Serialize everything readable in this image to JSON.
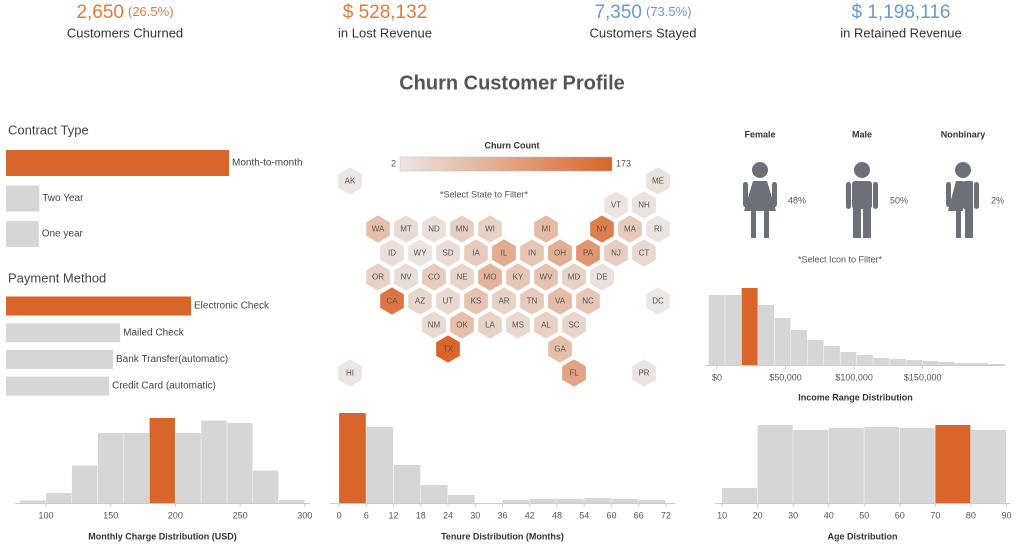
{
  "kpis": [
    {
      "value": "2,650",
      "share": "(26.5%)",
      "label": "Customers Churned",
      "color": "#e07b39"
    },
    {
      "value": "$ 528,132",
      "label": "in Lost Revenue",
      "color": "#e07b39"
    },
    {
      "value": "7,350",
      "share": "(73.5%)",
      "label": "Customers Stayed",
      "color": "#6b9bc7"
    },
    {
      "value": "$ 1,198,116",
      "label": "in Retained Revenue",
      "color": "#6b9bc7"
    }
  ],
  "title": "Churn Customer Profile",
  "chart_data": [
    {
      "type": "hbar",
      "title": "Contract Type",
      "categories": [
        "Month-to-month",
        "Two Year",
        "One year"
      ],
      "values": [
        2045,
        305,
        300
      ],
      "colors": [
        "#d9652a",
        "#d6d6d6",
        "#d6d6d6"
      ]
    },
    {
      "type": "hbar",
      "title": "Payment Method",
      "categories": [
        "Electronic Check",
        "Mailed Check",
        "Bank Transfer(automatic)",
        "Credit Card (automatic)"
      ],
      "values": [
        963,
        594,
        557,
        536
      ],
      "colors": [
        "#d9652a",
        "#d6d6d6",
        "#d6d6d6",
        "#d6d6d6"
      ]
    },
    {
      "type": "hexmap",
      "title": "Churn Count",
      "note": "*Select State to Filter*",
      "clim": [
        2,
        173
      ],
      "color_range": [
        "#ebe7e4",
        "#d9652a"
      ],
      "categories": [
        "AK",
        "ME",
        "VT",
        "NH",
        "WA",
        "MT",
        "ND",
        "MN",
        "WI",
        "MI",
        "NY",
        "MA",
        "RI",
        "ID",
        "WY",
        "SD",
        "IA",
        "IL",
        "IN",
        "OH",
        "PA",
        "NJ",
        "CT",
        "OR",
        "NV",
        "CO",
        "NE",
        "MO",
        "KY",
        "WV",
        "MD",
        "DE",
        "CA",
        "AZ",
        "UT",
        "KS",
        "AR",
        "TN",
        "VA",
        "NC",
        "DC",
        "NM",
        "OK",
        "LA",
        "MS",
        "AL",
        "SC",
        "TX",
        "GA",
        "HI",
        "FL",
        "PR"
      ],
      "values": [
        3,
        8,
        5,
        8,
        55,
        18,
        12,
        35,
        30,
        60,
        140,
        40,
        4,
        12,
        4,
        15,
        40,
        80,
        45,
        75,
        110,
        35,
        22,
        30,
        15,
        38,
        25,
        70,
        45,
        50,
        30,
        8,
        150,
        25,
        20,
        50,
        30,
        40,
        60,
        45,
        2,
        20,
        55,
        28,
        22,
        30,
        25,
        173,
        55,
        3,
        90,
        4
      ]
    },
    {
      "type": "pictogram",
      "note": "*Select Icon to Filter*",
      "categories": [
        "Female",
        "Male",
        "Nonbinary"
      ],
      "values": [
        48,
        50,
        2
      ],
      "value_labels": [
        "48%",
        "50%",
        "2%"
      ],
      "color": "#6b7079"
    },
    {
      "type": "histogram",
      "xlabel": "Income Range Distribution",
      "bins": [
        -6000,
        6000,
        18000,
        30000,
        42000,
        54000,
        66000,
        78000,
        90000,
        102000,
        114000,
        126000,
        138000,
        150000,
        162000,
        174000,
        186000,
        198000,
        210000
      ],
      "values": [
        350,
        350,
        385,
        300,
        235,
        175,
        125,
        95,
        65,
        50,
        35,
        30,
        25,
        20,
        15,
        10,
        10,
        5
      ],
      "colors": [
        "#d6d6d6",
        "#d6d6d6",
        "#d9652a",
        "#d6d6d6",
        "#d6d6d6",
        "#d6d6d6",
        "#d6d6d6",
        "#d6d6d6",
        "#d6d6d6",
        "#d6d6d6",
        "#d6d6d6",
        "#d6d6d6",
        "#d6d6d6",
        "#d6d6d6",
        "#d6d6d6",
        "#d6d6d6",
        "#d6d6d6",
        "#d6d6d6"
      ],
      "xlim": [
        -8000,
        210000
      ],
      "xticks": [
        {
          "value": 0,
          "label": "$0"
        },
        {
          "value": 50000,
          "label": "$50,000"
        },
        {
          "value": 100000,
          "label": "$100,000"
        },
        {
          "value": 150000,
          "label": "$150,000"
        }
      ]
    },
    {
      "type": "histogram",
      "xlabel": "Monthly Charge Distribution (USD)",
      "bins": [
        80,
        100,
        120,
        140,
        160,
        180,
        200,
        220,
        240,
        260,
        280,
        300
      ],
      "values": [
        10,
        40,
        150,
        280,
        280,
        340,
        280,
        330,
        320,
        130,
        12
      ],
      "colors": [
        "#d6d6d6",
        "#d6d6d6",
        "#d6d6d6",
        "#d6d6d6",
        "#d6d6d6",
        "#d9652a",
        "#d6d6d6",
        "#d6d6d6",
        "#d6d6d6",
        "#d6d6d6",
        "#d6d6d6"
      ],
      "xlim": [
        76,
        304
      ],
      "xticks": [
        100,
        150,
        200,
        250,
        300
      ]
    },
    {
      "type": "histogram",
      "xlabel": "Tenure Distribution (Months)",
      "bins": [
        0,
        6,
        12,
        18,
        24,
        30,
        36,
        42,
        48,
        54,
        60,
        66,
        72
      ],
      "values": [
        900,
        760,
        380,
        180,
        80,
        0,
        30,
        40,
        40,
        50,
        40,
        30
      ],
      "colors": [
        "#d9652a",
        "#d6d6d6",
        "#d6d6d6",
        "#d6d6d6",
        "#d6d6d6",
        "#d6d6d6",
        "#d6d6d6",
        "#d6d6d6",
        "#d6d6d6",
        "#d6d6d6",
        "#d6d6d6",
        "#d6d6d6"
      ],
      "xlim": [
        -2,
        74
      ],
      "xticks": [
        0,
        6,
        12,
        18,
        24,
        30,
        36,
        42,
        48,
        54,
        60,
        66,
        72
      ]
    },
    {
      "type": "histogram",
      "xlabel": "Age Distribution",
      "bins": [
        10,
        20,
        30,
        40,
        50,
        60,
        70,
        80,
        90
      ],
      "values": [
        60,
        312,
        292,
        300,
        304,
        300,
        312,
        292
      ],
      "colors": [
        "#d6d6d6",
        "#d6d6d6",
        "#d6d6d6",
        "#d6d6d6",
        "#d6d6d6",
        "#d6d6d6",
        "#d9652a",
        "#d6d6d6"
      ],
      "xlim": [
        8,
        91
      ],
      "xticks": [
        10,
        20,
        30,
        40,
        50,
        60,
        70,
        80,
        90
      ]
    }
  ]
}
